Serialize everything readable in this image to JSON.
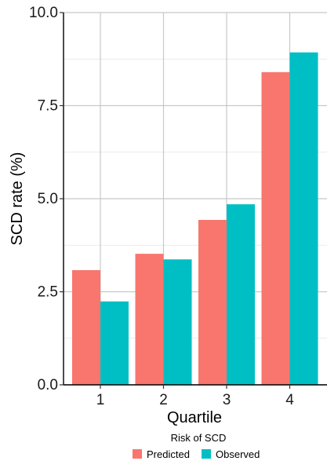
{
  "chart_data": {
    "type": "bar",
    "title": "",
    "xlabel": "Quartile",
    "ylabel": "SCD rate (%)",
    "categories": [
      "1",
      "2",
      "3",
      "4"
    ],
    "ylim": [
      0,
      10
    ],
    "yticks": [
      "0.0",
      "2.5",
      "5.0",
      "7.5",
      "10.0"
    ],
    "grid": true,
    "legend": {
      "title": "Risk of SCD",
      "position": "bottom"
    },
    "series": [
      {
        "name": "Predicted",
        "color": "#F8766D",
        "values": [
          3.08,
          3.52,
          4.43,
          8.4
        ]
      },
      {
        "name": "Observed",
        "color": "#00BFC4",
        "values": [
          2.24,
          3.37,
          4.85,
          8.93
        ]
      }
    ]
  }
}
